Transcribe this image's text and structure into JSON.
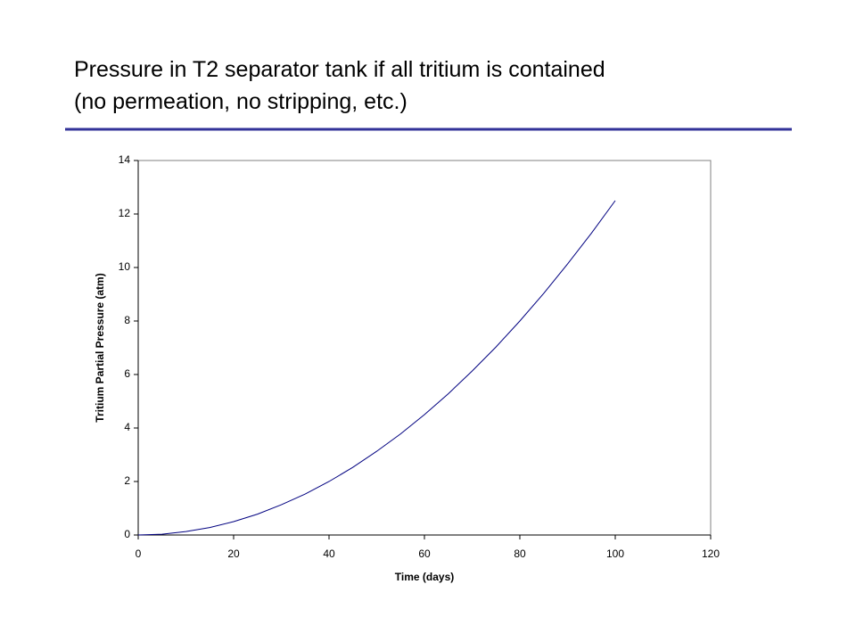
{
  "chart_data": {
    "type": "line",
    "title": "Pressure in T2 separator tank if all tritium is contained",
    "subtitle": "(no permeation, no stripping, etc.)",
    "x_label": "Time (days)",
    "y_label": "Tritium Partial Pressure (atm)",
    "x": [
      0,
      5,
      10,
      15,
      20,
      25,
      30,
      35,
      40,
      45,
      50,
      55,
      60,
      65,
      70,
      75,
      80,
      85,
      90,
      95,
      100
    ],
    "values": [
      0,
      0.03,
      0.13,
      0.28,
      0.5,
      0.78,
      1.13,
      1.53,
      2.0,
      2.53,
      3.13,
      3.78,
      4.5,
      5.28,
      6.13,
      7.03,
      8.0,
      9.03,
      10.13,
      11.28,
      12.5
    ],
    "color": "#000080",
    "xlim": [
      0,
      120
    ],
    "xticks": [
      0,
      20,
      40,
      60,
      80,
      100,
      120
    ],
    "ylim": [
      0,
      14
    ],
    "yticks": [
      0,
      2,
      4,
      6,
      8,
      10,
      12,
      14
    ],
    "grid": false
  }
}
